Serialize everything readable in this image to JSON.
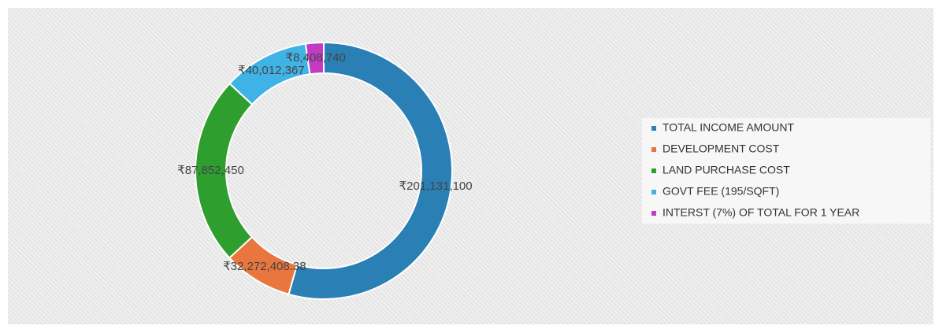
{
  "chart_data": {
    "type": "donut",
    "categories": [
      "TOTAL INCOME AMOUNT",
      "DEVELOPMENT COST",
      "LAND PURCHASE COST",
      "GOVT FEE (195/SQFT)",
      "INTERST (7%) OF TOTAL FOR 1 YEAR"
    ],
    "values": [
      201131100,
      32272408.38,
      87852450,
      40012367,
      8408740
    ],
    "value_labels": [
      "₹201,131,100",
      "₹32,272,408.38",
      "₹87,852,450",
      "₹40,012,367",
      "₹8,408,740"
    ],
    "colors": [
      "#2a7fb5",
      "#e8763e",
      "#2e9e2e",
      "#3fb2e6",
      "#c33bc3"
    ],
    "legend": "right"
  }
}
